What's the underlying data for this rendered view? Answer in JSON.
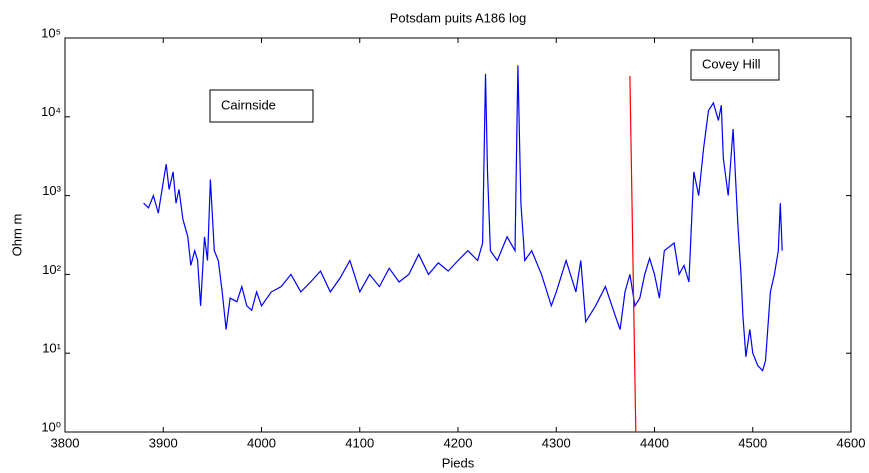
{
  "chart_data": {
    "type": "line",
    "title": "Potsdam puits A186 log",
    "xlabel": "Pieds",
    "ylabel": "Ohm m",
    "log_y": true,
    "xlim": [
      3800,
      4600
    ],
    "xticks": [
      3800,
      3900,
      4000,
      4100,
      4200,
      4300,
      4400,
      4500,
      4600
    ],
    "ylim": [
      1,
      100000
    ],
    "yticks": [
      {
        "value": 1,
        "label": "10⁰"
      },
      {
        "value": 10,
        "label": "10¹"
      },
      {
        "value": 100,
        "label": "10²"
      },
      {
        "value": 1000,
        "label": "10³"
      },
      {
        "value": 10000,
        "label": "10⁴"
      },
      {
        "value": 100000,
        "label": "10⁵"
      }
    ],
    "series": [
      {
        "color": "#0000ff",
        "x": [
          3880,
          3885,
          3890,
          3895,
          3900,
          3903,
          3906,
          3910,
          3913,
          3916,
          3920,
          3925,
          3928,
          3932,
          3935,
          3938,
          3942,
          3945,
          3948,
          3952,
          3956,
          3960,
          3964,
          3968,
          3975,
          3980,
          3985,
          3990,
          3995,
          4000,
          4010,
          4020,
          4030,
          4040,
          4050,
          4060,
          4070,
          4080,
          4090,
          4100,
          4110,
          4120,
          4130,
          4140,
          4150,
          4160,
          4170,
          4180,
          4190,
          4200,
          4210,
          4220,
          4225,
          4228,
          4230,
          4233,
          4240,
          4250,
          4258,
          4261,
          4264,
          4268,
          4275,
          4285,
          4295,
          4300,
          4310,
          4320,
          4325,
          4330,
          4340,
          4350,
          4360,
          4365,
          4370,
          4375,
          4380,
          4385,
          4390,
          4395,
          4400,
          4405,
          4410,
          4420,
          4425,
          4430,
          4435,
          4440,
          4445,
          4450,
          4455,
          4460,
          4465,
          4468,
          4470,
          4475,
          4480,
          4485,
          4488,
          4490,
          4493,
          4497,
          4500,
          4505,
          4510,
          4513,
          4518,
          4522,
          4526,
          4528,
          4530
        ],
        "values": [
          800,
          700,
          1000,
          600,
          1500,
          2500,
          1200,
          2000,
          800,
          1200,
          500,
          300,
          130,
          200,
          150,
          40,
          300,
          150,
          1600,
          200,
          150,
          60,
          20,
          50,
          45,
          70,
          40,
          35,
          60,
          40,
          60,
          70,
          100,
          60,
          80,
          110,
          60,
          90,
          150,
          60,
          100,
          70,
          120,
          80,
          100,
          180,
          100,
          140,
          110,
          150,
          200,
          150,
          250,
          35000,
          2000,
          200,
          150,
          300,
          200,
          45000,
          800,
          150,
          200,
          100,
          40,
          60,
          150,
          60,
          150,
          25,
          40,
          70,
          30,
          20,
          60,
          100,
          40,
          50,
          100,
          160,
          100,
          50,
          200,
          250,
          100,
          130,
          80,
          2000,
          1000,
          4000,
          12000,
          15000,
          9000,
          14000,
          3000,
          1000,
          7000,
          400,
          100,
          30,
          9,
          20,
          10,
          7,
          6,
          8,
          60,
          100,
          200,
          800,
          200
        ]
      }
    ],
    "marker_line": {
      "color": "#ff0000",
      "x": [
        4375,
        4381
      ],
      "values": [
        33000,
        1
      ]
    },
    "annotations": [
      {
        "text": "Cairnside"
      },
      {
        "text": "Covey Hill"
      }
    ]
  }
}
